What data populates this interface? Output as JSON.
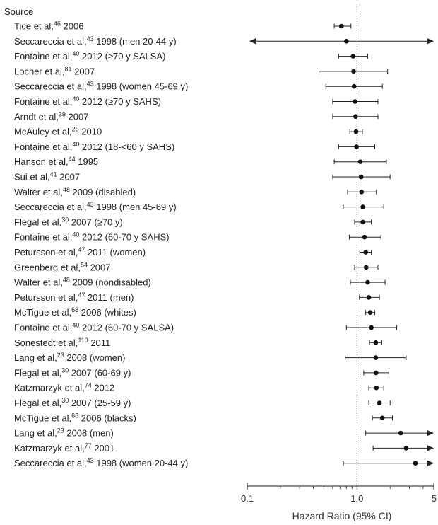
{
  "chart_data": {
    "type": "forest",
    "header": "Source",
    "xlabel": "Hazard Ratio (95% CI)",
    "x_scale": "log",
    "xlim": [
      0.1,
      5
    ],
    "x_ticks": [
      {
        "value": 0.1,
        "label": "0.1"
      },
      {
        "value": 1,
        "label": "1.0"
      },
      {
        "value": 5,
        "label": "5"
      }
    ],
    "reference_line": 1,
    "studies": [
      {
        "author": "Tice et al,",
        "ref": "46",
        "year": "2006",
        "note": "",
        "hr": 0.72,
        "lo": 0.62,
        "hi": 0.88,
        "arrow_left": false,
        "arrow_right": false
      },
      {
        "author": "Seccareccia et al,",
        "ref": "43",
        "year": "1998",
        "note": "(men 20-44 y)",
        "hr": 0.8,
        "lo": 0.1,
        "hi": 5,
        "arrow_left": true,
        "arrow_right": true
      },
      {
        "author": "Fontaine et al,",
        "ref": "40",
        "year": "2012",
        "note": "(≥70 y SALSA)",
        "hr": 0.92,
        "lo": 0.68,
        "hi": 1.25,
        "arrow_left": false,
        "arrow_right": false
      },
      {
        "author": "Locher et al,",
        "ref": "81",
        "year": "2007",
        "note": "",
        "hr": 0.93,
        "lo": 0.45,
        "hi": 1.9,
        "arrow_left": false,
        "arrow_right": false
      },
      {
        "author": "Seccareccia et al,",
        "ref": "43",
        "year": "1998",
        "note": "(women 45-69 y)",
        "hr": 0.94,
        "lo": 0.52,
        "hi": 1.7,
        "arrow_left": false,
        "arrow_right": false
      },
      {
        "author": "Fontaine et al,",
        "ref": "40",
        "year": "2012",
        "note": "(≥70 y SAHS)",
        "hr": 0.96,
        "lo": 0.6,
        "hi": 1.55,
        "arrow_left": false,
        "arrow_right": false
      },
      {
        "author": "Arndt et al,",
        "ref": "39",
        "year": "2007",
        "note": "",
        "hr": 0.97,
        "lo": 0.6,
        "hi": 1.55,
        "arrow_left": false,
        "arrow_right": false
      },
      {
        "author": "McAuley et al,",
        "ref": "25",
        "year": "2010",
        "note": "",
        "hr": 0.98,
        "lo": 0.86,
        "hi": 1.12,
        "arrow_left": false,
        "arrow_right": false
      },
      {
        "author": "Fontaine et al,",
        "ref": "40",
        "year": "2012",
        "note": "(18-<60 y SAHS)",
        "hr": 0.99,
        "lo": 0.68,
        "hi": 1.45,
        "arrow_left": false,
        "arrow_right": false
      },
      {
        "author": "Hanson et al,",
        "ref": "44",
        "year": "1995",
        "note": "",
        "hr": 1.07,
        "lo": 0.62,
        "hi": 1.85,
        "arrow_left": false,
        "arrow_right": false
      },
      {
        "author": "Sui et al,",
        "ref": "41",
        "year": "2007",
        "note": "",
        "hr": 1.09,
        "lo": 0.6,
        "hi": 2.0,
        "arrow_left": false,
        "arrow_right": false
      },
      {
        "author": "Walter et al,",
        "ref": "48",
        "year": "2009",
        "note": "(disabled)",
        "hr": 1.1,
        "lo": 0.82,
        "hi": 1.5,
        "arrow_left": false,
        "arrow_right": false
      },
      {
        "author": "Seccareccia et al,",
        "ref": "43",
        "year": "1998",
        "note": "(men 45-69 y)",
        "hr": 1.13,
        "lo": 0.75,
        "hi": 1.75,
        "arrow_left": false,
        "arrow_right": false
      },
      {
        "author": "Flegal et al,",
        "ref": "30",
        "year": "2007",
        "note": "(≥70 y)",
        "hr": 1.13,
        "lo": 0.95,
        "hi": 1.35,
        "arrow_left": false,
        "arrow_right": false
      },
      {
        "author": "Fontaine et al,",
        "ref": "40",
        "year": "2012",
        "note": "(60-70 y SAHS)",
        "hr": 1.17,
        "lo": 0.85,
        "hi": 1.65,
        "arrow_left": false,
        "arrow_right": false
      },
      {
        "author": "Petursson et al,",
        "ref": "47",
        "year": "2011",
        "note": "(women)",
        "hr": 1.2,
        "lo": 1.06,
        "hi": 1.35,
        "arrow_left": false,
        "arrow_right": false
      },
      {
        "author": "Greenberg et al,",
        "ref": "54",
        "year": "2007",
        "note": "",
        "hr": 1.21,
        "lo": 0.95,
        "hi": 1.55,
        "arrow_left": false,
        "arrow_right": false
      },
      {
        "author": "Walter et al,",
        "ref": "48",
        "year": "2009",
        "note": "(nondisabled)",
        "hr": 1.25,
        "lo": 0.87,
        "hi": 1.8,
        "arrow_left": false,
        "arrow_right": false
      },
      {
        "author": "Petursson et al,",
        "ref": "47",
        "year": "2011",
        "note": "(men)",
        "hr": 1.28,
        "lo": 1.05,
        "hi": 1.6,
        "arrow_left": false,
        "arrow_right": false
      },
      {
        "author": "McTigue et al,",
        "ref": "68",
        "year": "2006",
        "note": "(whites)",
        "hr": 1.32,
        "lo": 1.2,
        "hi": 1.45,
        "arrow_left": false,
        "arrow_right": false
      },
      {
        "author": "Fontaine et al,",
        "ref": "40",
        "year": "2012",
        "note": "(60-70 y SALSA)",
        "hr": 1.35,
        "lo": 0.8,
        "hi": 2.3,
        "arrow_left": false,
        "arrow_right": false
      },
      {
        "author": "Sonestedt et al,",
        "ref": "110",
        "year": "2011",
        "note": "",
        "hr": 1.48,
        "lo": 1.3,
        "hi": 1.68,
        "arrow_left": false,
        "arrow_right": false
      },
      {
        "author": "Lang et al,",
        "ref": "23",
        "year": "2008",
        "note": "(women)",
        "hr": 1.48,
        "lo": 0.78,
        "hi": 2.8,
        "arrow_left": false,
        "arrow_right": false
      },
      {
        "author": "Flegal et al,",
        "ref": "30",
        "year": "2007",
        "note": "(60-69 y)",
        "hr": 1.49,
        "lo": 1.15,
        "hi": 1.95,
        "arrow_left": false,
        "arrow_right": false
      },
      {
        "author": "Katzmarzyk et al,",
        "ref": "74",
        "year": "2012",
        "note": "",
        "hr": 1.5,
        "lo": 1.28,
        "hi": 1.75,
        "arrow_left": false,
        "arrow_right": false
      },
      {
        "author": "Flegal et al,",
        "ref": "30",
        "year": "2007",
        "note": "(25-59 y)",
        "hr": 1.6,
        "lo": 1.28,
        "hi": 2.0,
        "arrow_left": false,
        "arrow_right": false
      },
      {
        "author": "McTigue et al,",
        "ref": "68",
        "year": "2006",
        "note": "(blacks)",
        "hr": 1.7,
        "lo": 1.38,
        "hi": 2.1,
        "arrow_left": false,
        "arrow_right": false
      },
      {
        "author": "Lang et al,",
        "ref": "23",
        "year": "2008",
        "note": "(men)",
        "hr": 2.5,
        "lo": 1.2,
        "hi": 5,
        "arrow_left": false,
        "arrow_right": true
      },
      {
        "author": "Katzmarzyk et al,",
        "ref": "77",
        "year": "2001",
        "note": "",
        "hr": 2.8,
        "lo": 1.4,
        "hi": 5,
        "arrow_left": false,
        "arrow_right": true
      },
      {
        "author": "Seccareccia et al,",
        "ref": "43",
        "year": "1998",
        "note": "(women 20-44 y)",
        "hr": 3.4,
        "lo": 0.75,
        "hi": 5,
        "arrow_left": false,
        "arrow_right": true
      }
    ]
  }
}
